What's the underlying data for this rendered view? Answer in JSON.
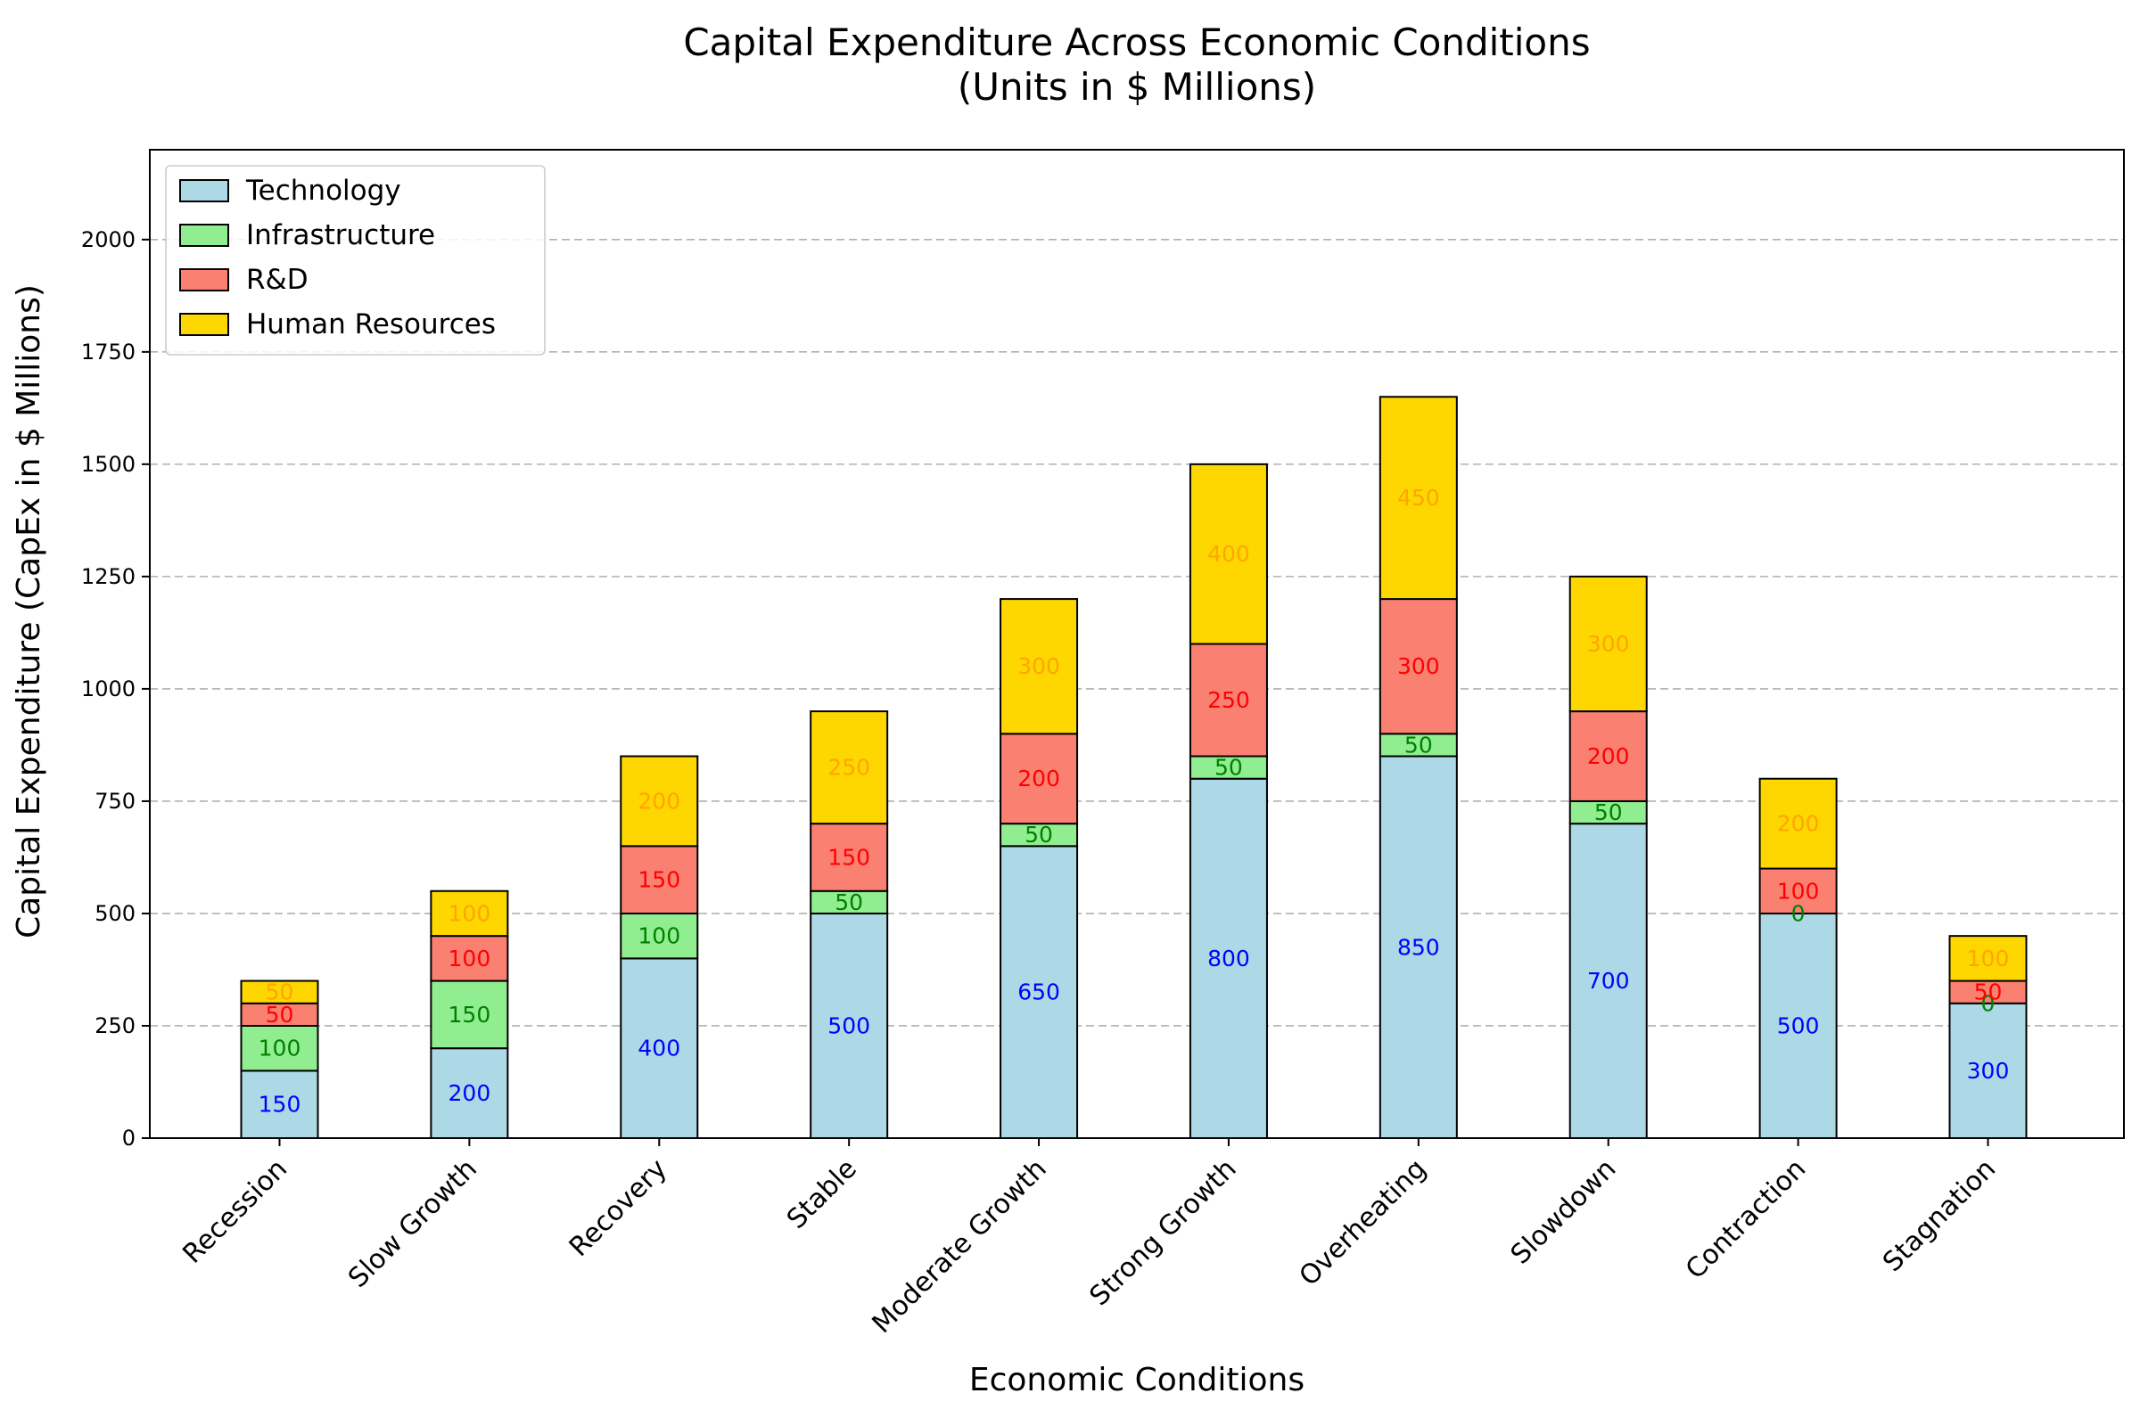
{
  "chart_data": {
    "type": "bar",
    "stacked": true,
    "title": "Capital Expenditure Across Economic Conditions",
    "subtitle": "(Units in $ Millions)",
    "xlabel": "Economic Conditions",
    "ylabel": "Capital Expenditure (CapEx in $ Millions)",
    "ylim": [
      0,
      2200
    ],
    "yticks": [
      0,
      250,
      500,
      750,
      1000,
      1250,
      1500,
      1750,
      2000
    ],
    "grid": "y-dashed",
    "legend_position": "top-left",
    "categories": [
      "Recession",
      "Slow Growth",
      "Recovery",
      "Stable",
      "Moderate Growth",
      "Strong Growth",
      "Overheating",
      "Slowdown",
      "Contraction",
      "Stagnation"
    ],
    "series": [
      {
        "name": "Technology",
        "color": "#add8e6",
        "label_color": "#0000ff",
        "values": [
          150,
          200,
          400,
          500,
          650,
          800,
          850,
          700,
          500,
          300
        ]
      },
      {
        "name": "Infrastructure",
        "color": "#90ee90",
        "label_color": "#008000",
        "values": [
          100,
          150,
          100,
          50,
          50,
          50,
          50,
          50,
          0,
          0
        ]
      },
      {
        "name": "R&D",
        "color": "#fa8072",
        "label_color": "#ff0000",
        "values": [
          50,
          100,
          150,
          150,
          200,
          250,
          300,
          200,
          100,
          50
        ]
      },
      {
        "name": "Human Resources",
        "color": "#ffd700",
        "label_color": "#ffa500",
        "values": [
          50,
          100,
          200,
          250,
          300,
          400,
          450,
          300,
          200,
          100
        ]
      }
    ]
  }
}
